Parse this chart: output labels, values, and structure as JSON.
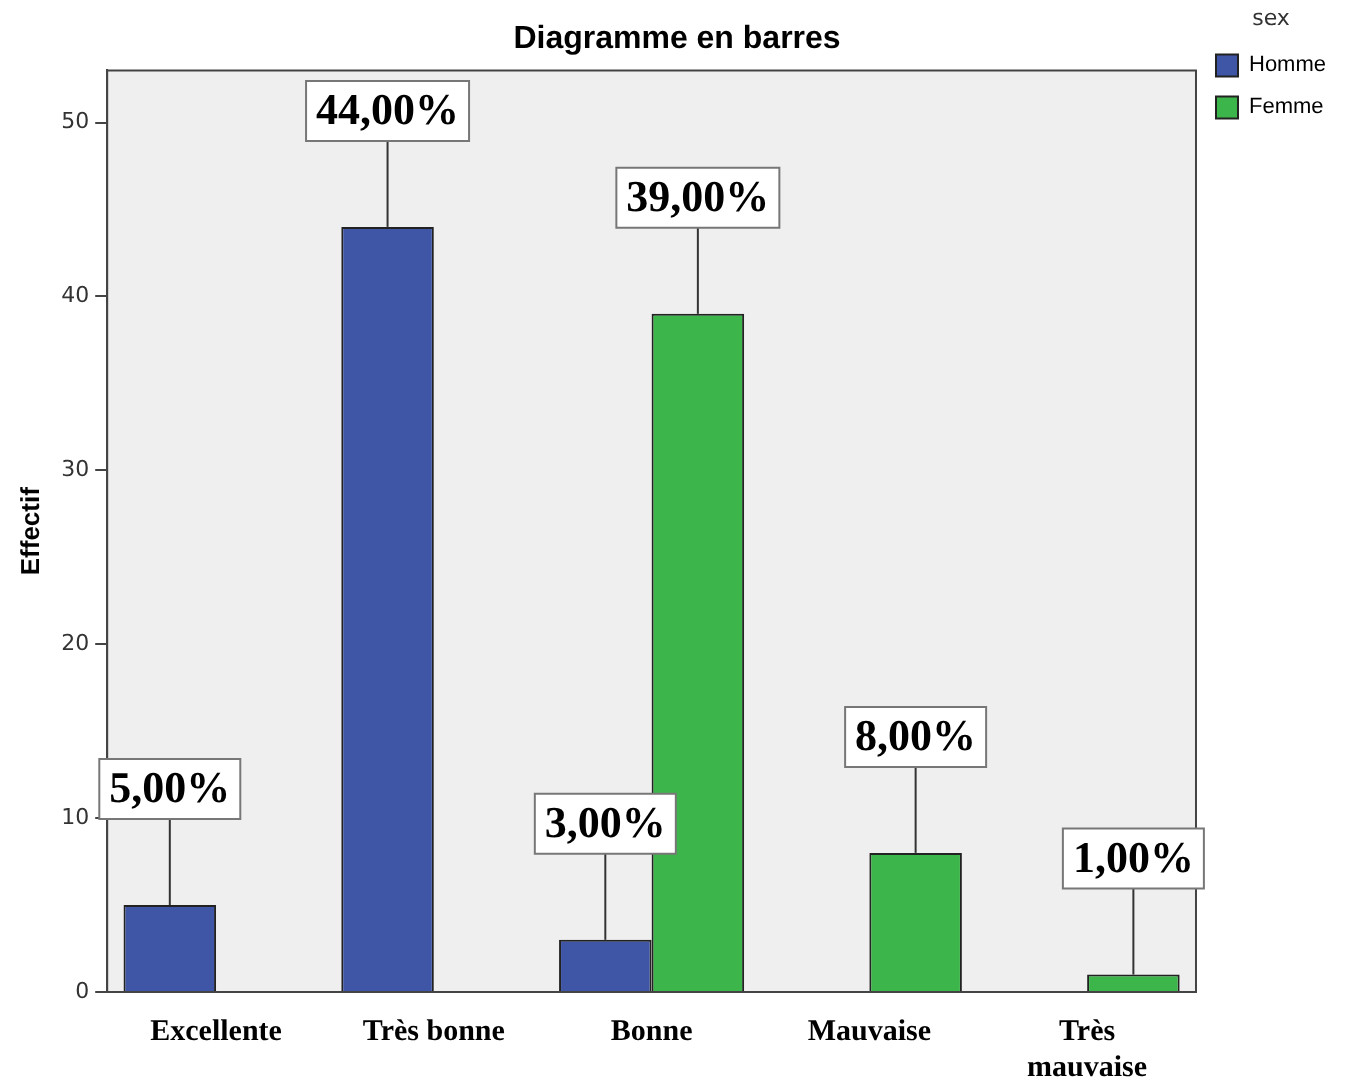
{
  "chart_data": {
    "type": "bar",
    "title": "Diagramme en barres",
    "ylabel": "Effectif",
    "legend_title": "sex",
    "categories": [
      "Excellente",
      "Très bonne",
      "Bonne",
      "Mauvaise",
      "Très mauvaise"
    ],
    "series": [
      {
        "name": "Homme",
        "color": "#3f56a6",
        "values": [
          5,
          44,
          3,
          null,
          null
        ],
        "value_labels": [
          "5,00%",
          "44,00%",
          "3,00%",
          null,
          null
        ]
      },
      {
        "name": "Femme",
        "color": "#3cb64a",
        "values": [
          null,
          null,
          39,
          8,
          1
        ],
        "value_labels": [
          null,
          null,
          "39,00%",
          "8,00%",
          "1,00%"
        ]
      }
    ],
    "ylim": [
      0,
      53
    ],
    "yticks": [
      0,
      10,
      20,
      30,
      40,
      50
    ],
    "grid": false,
    "legend": "top right"
  }
}
